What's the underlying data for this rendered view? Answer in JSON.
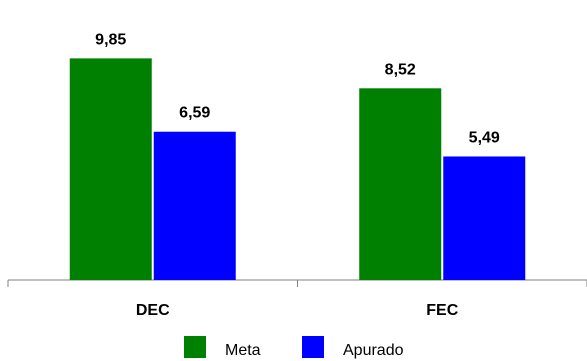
{
  "chart_data": {
    "type": "bar",
    "categories": [
      "DEC",
      "FEC"
    ],
    "series": [
      {
        "name": "Meta",
        "values": [
          9.85,
          8.52
        ],
        "labels": [
          "9,85",
          "8,52"
        ],
        "color": "#008000"
      },
      {
        "name": "Apurado",
        "values": [
          6.59,
          5.49
        ],
        "labels": [
          "6,59",
          "5,49"
        ],
        "color": "#0000ff"
      }
    ],
    "title": "",
    "xlabel": "",
    "ylabel": "",
    "ylim": [
      0,
      12
    ],
    "grid": false,
    "legend_position": "bottom"
  }
}
